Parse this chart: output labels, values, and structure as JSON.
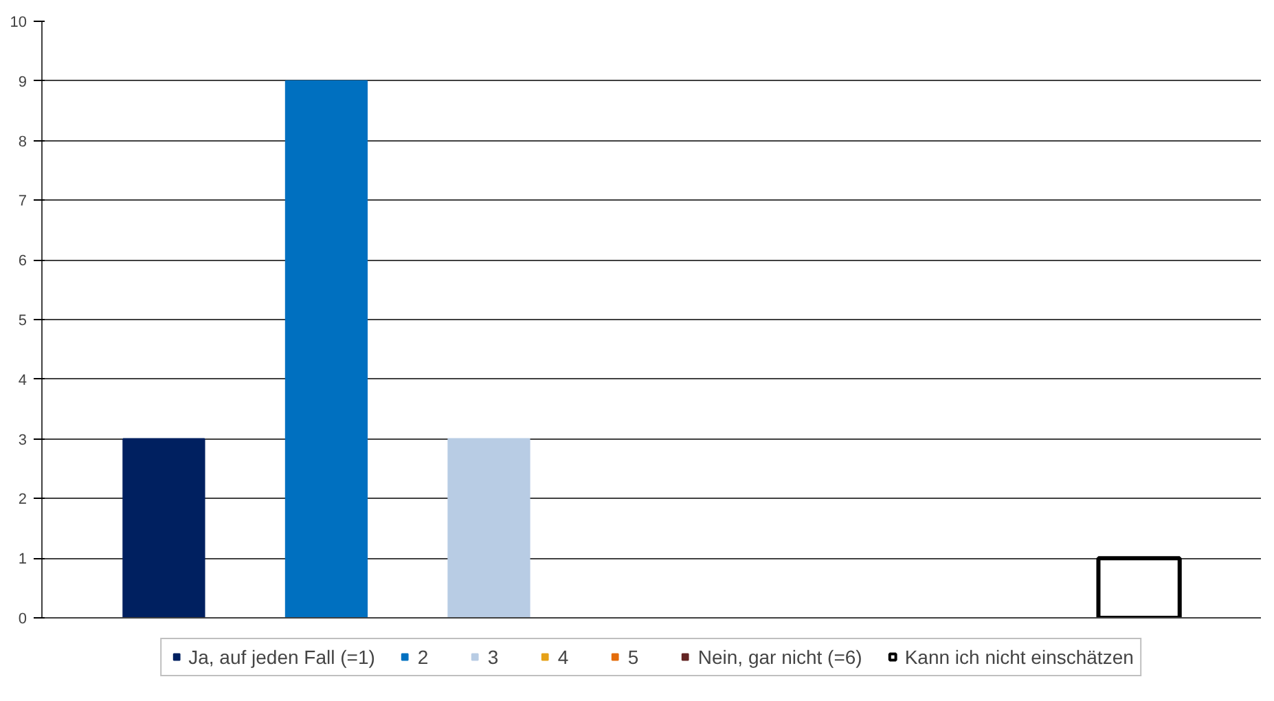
{
  "chart_data": {
    "type": "bar",
    "categories": [
      null,
      null,
      null,
      null,
      null,
      null,
      null
    ],
    "series": [
      {
        "name": "Ja, auf jeden Fall (=1)",
        "color": "#002060",
        "values": [
          3,
          null,
          null,
          null,
          null,
          null,
          null
        ]
      },
      {
        "name": "2",
        "color": "#0070c0",
        "values": [
          null,
          9,
          null,
          null,
          null,
          null,
          null
        ]
      },
      {
        "name": "3",
        "color": "#b8cce4",
        "values": [
          null,
          null,
          3,
          null,
          null,
          null,
          null
        ]
      },
      {
        "name": "4",
        "color": "#e6a118",
        "values": [
          null,
          null,
          null,
          0,
          null,
          null,
          null
        ]
      },
      {
        "name": "5",
        "color": "#e46c0a",
        "values": [
          null,
          null,
          null,
          null,
          0,
          null,
          null
        ]
      },
      {
        "name": "Nein, gar nicht (=6)",
        "color": "#632423",
        "values": [
          null,
          null,
          null,
          null,
          null,
          0,
          null
        ]
      },
      {
        "name": "Kann ich nicht einschätzen",
        "color": "#ffffff",
        "values": [
          null,
          null,
          null,
          null,
          null,
          null,
          1
        ]
      }
    ],
    "ylim": [
      0,
      10
    ],
    "yticks": [
      0,
      1,
      2,
      3,
      4,
      5,
      6,
      7,
      8,
      9,
      10
    ],
    "grid": "y",
    "legend": "bottom"
  }
}
